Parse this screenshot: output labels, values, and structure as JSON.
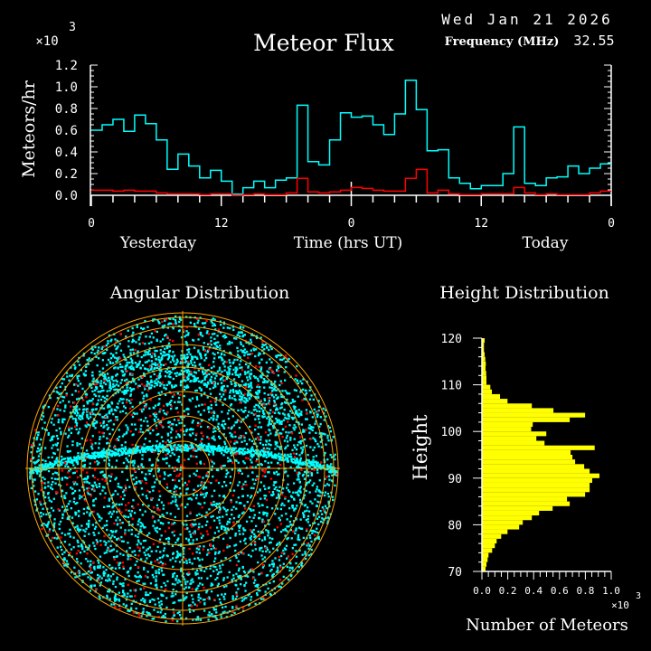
{
  "header": {
    "date": "Wed Jan 21 2026",
    "title": "Meteor Flux",
    "frequency_label": "Frequency (MHz)",
    "frequency_value": "32.55"
  },
  "colors": {
    "background": "#000000",
    "all_meteors": "#00ffff",
    "subset": "#ff0000",
    "grid": "#ffa500",
    "histogram": "#ffff00",
    "axes": "#ffffff"
  },
  "chart_data": [
    {
      "type": "line",
      "title": "Meteor Flux",
      "ylabel": "Meteors/hr",
      "yscale_label": "×10",
      "yscale_exp": "3",
      "xlabel": "Time (hrs UT)",
      "day_labels": [
        "Yesterday",
        "Today"
      ],
      "x_tick_labels": [
        "0",
        "12",
        "0",
        "12",
        "0"
      ],
      "y_tick_labels": [
        "0.0",
        "0.2",
        "0.4",
        "0.6",
        "0.8",
        "1.0",
        "1.2"
      ],
      "ylim": [
        0,
        1.2
      ],
      "xlim_hours": [
        0,
        48
      ],
      "step": true,
      "series": [
        {
          "color": "#00ffff",
          "values": [
            0.6,
            0.65,
            0.7,
            0.59,
            0.74,
            0.66,
            0.51,
            0.24,
            0.38,
            0.27,
            0.16,
            0.23,
            0.13,
            0.01,
            0.07,
            0.13,
            0.07,
            0.14,
            0.16,
            0.83,
            0.31,
            0.28,
            0.51,
            0.76,
            0.72,
            0.73,
            0.65,
            0.56,
            0.75,
            1.06,
            0.79,
            0.41,
            0.42,
            0.16,
            0.11,
            0.06,
            0.09,
            0.09,
            0.2,
            0.63,
            0.11,
            0.09,
            0.16,
            0.17,
            0.27,
            0.2,
            0.25,
            0.29
          ]
        },
        {
          "color": "#ff0000",
          "values": [
            0.047,
            0.047,
            0.039,
            0.047,
            0.039,
            0.039,
            0.022,
            0.014,
            0.014,
            0.014,
            0.006,
            0.014,
            0.014,
            0.0,
            0.006,
            0.014,
            0.006,
            0.006,
            0.022,
            0.156,
            0.031,
            0.022,
            0.031,
            0.047,
            0.072,
            0.064,
            0.047,
            0.039,
            0.039,
            0.156,
            0.239,
            0.022,
            0.047,
            0.014,
            0.006,
            0.006,
            0.014,
            0.014,
            0.014,
            0.072,
            0.022,
            0.006,
            0.014,
            0.006,
            0.006,
            0.006,
            0.022,
            0.039
          ]
        }
      ]
    },
    {
      "type": "scatter",
      "title": "Angular Distribution",
      "projection": "polar sky map",
      "series_colors": [
        "#00ffff",
        "#ff0000"
      ]
    },
    {
      "type": "bar",
      "orientation": "horizontal",
      "title": "Height Distribution",
      "ylabel": "Height",
      "xlabel": "Number of Meteors",
      "xscale_label": "×10",
      "xscale_exp": "3",
      "y_tick_labels": [
        "120",
        "110",
        "100",
        "90",
        "80",
        "70"
      ],
      "x_tick_labels": [
        "0.0",
        "0.2",
        "0.4",
        "0.6",
        "0.8",
        "1.0"
      ],
      "ylim": [
        70,
        120
      ],
      "xlim": [
        0,
        1.0
      ],
      "bin_starts": [
        70,
        71,
        72,
        73,
        74,
        75,
        76,
        77,
        78,
        79,
        80,
        81,
        82,
        83,
        84,
        85,
        86,
        87,
        88,
        89,
        90,
        91,
        92,
        93,
        94,
        95,
        96,
        97,
        98,
        99,
        100,
        101,
        102,
        103,
        104,
        105,
        106,
        107,
        108,
        109,
        110,
        111,
        112,
        113,
        114,
        115,
        116,
        117,
        118,
        119
      ],
      "values": [
        0.028,
        0.035,
        0.044,
        0.051,
        0.079,
        0.1,
        0.114,
        0.149,
        0.198,
        0.288,
        0.316,
        0.386,
        0.442,
        0.547,
        0.679,
        0.658,
        0.798,
        0.833,
        0.833,
        0.853,
        0.909,
        0.833,
        0.791,
        0.721,
        0.7,
        0.686,
        0.872,
        0.484,
        0.421,
        0.498,
        0.381,
        0.393,
        0.679,
        0.798,
        0.553,
        0.386,
        0.198,
        0.14,
        0.077,
        0.065,
        0.035,
        0.035,
        0.033,
        0.028,
        0.03,
        0.026,
        0.021,
        0.016,
        0.016,
        0.021
      ]
    }
  ]
}
